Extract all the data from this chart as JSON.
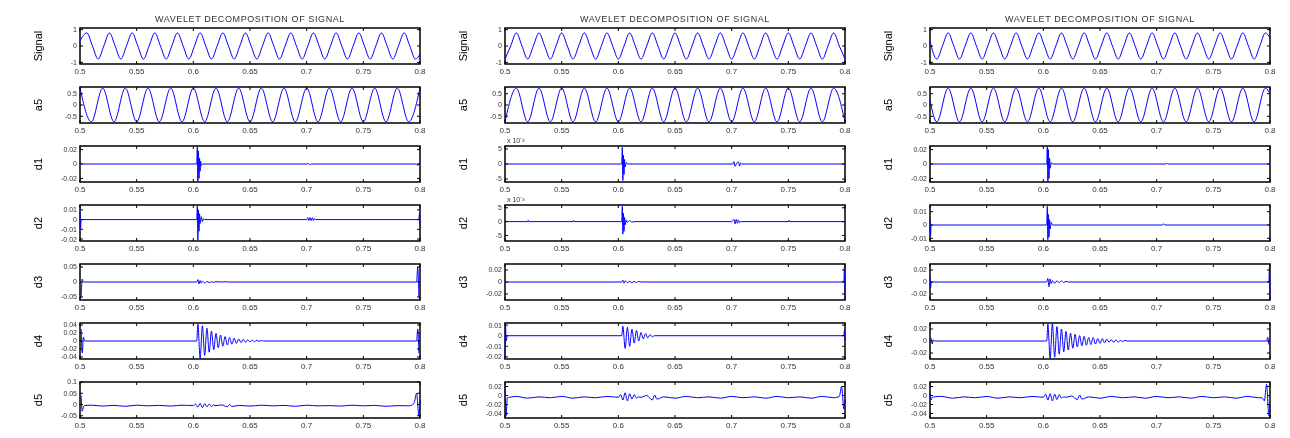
{
  "chart_data": [
    {
      "type": "line",
      "title": "WAVELET DECOMPOSITION OF SIGNAL",
      "ylabel": "Signal",
      "color": "#0000ff",
      "xlim": [
        0.5,
        0.8
      ],
      "ylim": [
        -1.1,
        1.1
      ],
      "xticks": [
        0.5,
        0.55,
        0.6,
        0.65,
        0.7,
        0.75,
        0.8
      ],
      "yticks": [
        -1,
        0,
        1
      ],
      "x": [
        0.5,
        0.506,
        0.511,
        0.516,
        0.521,
        0.526,
        0.531,
        0.536,
        0.541,
        0.546,
        0.551,
        0.556,
        0.561,
        0.566,
        0.571,
        0.576,
        0.581,
        0.586,
        0.591,
        0.596,
        0.601,
        0.606,
        0.611,
        0.616,
        0.621,
        0.626,
        0.631,
        0.636,
        0.641,
        0.646,
        0.651,
        0.656,
        0.661,
        0.666,
        0.671,
        0.676,
        0.681,
        0.686,
        0.691,
        0.696,
        0.701,
        0.706,
        0.711,
        0.716,
        0.721,
        0.726,
        0.731,
        0.736,
        0.741,
        0.746,
        0.751,
        0.756,
        0.761,
        0.766,
        0.771,
        0.776,
        0.781,
        0.786,
        0.791,
        0.796,
        0.8
      ],
      "values": [
        0.3,
        0.8,
        0,
        -0.8,
        0,
        0.8,
        0,
        -0.8,
        0,
        0.8,
        0,
        -0.8,
        0,
        0.8,
        0,
        -0.8,
        0,
        0.8,
        0,
        -0.8,
        0,
        0.8,
        0,
        -0.8,
        0,
        0.8,
        0,
        -0.8,
        0,
        0.8,
        0,
        -0.8,
        0,
        0.8,
        0,
        -0.8,
        0,
        0.8,
        0,
        -0.8,
        0,
        0.8,
        0,
        -0.8,
        0,
        0.8,
        0,
        -0.8,
        0,
        0.8,
        0,
        -0.8,
        0,
        0.8,
        0,
        -0.8,
        0,
        0.8,
        0,
        -0.8,
        -0.5
      ]
    },
    {
      "type": "line",
      "title": "WAVELET DECOMPOSITION OF SIGNAL",
      "ylabel": "Signal",
      "color": "#0000ff",
      "xlim": [
        0.5,
        0.8
      ],
      "ylim": [
        -1.1,
        1.1
      ],
      "xticks": [
        0.5,
        0.55,
        0.6,
        0.65,
        0.7,
        0.75,
        0.8
      ],
      "yticks": [
        -1,
        0,
        1
      ],
      "x": [
        0.5,
        0.505,
        0.51,
        0.515,
        0.52,
        0.525,
        0.53,
        0.535,
        0.54,
        0.545,
        0.55,
        0.555,
        0.56,
        0.565,
        0.57,
        0.575,
        0.58,
        0.585,
        0.59,
        0.595,
        0.6,
        0.605,
        0.61,
        0.615,
        0.62,
        0.625,
        0.63,
        0.635,
        0.64,
        0.645,
        0.65,
        0.655,
        0.66,
        0.665,
        0.67,
        0.675,
        0.68,
        0.685,
        0.69,
        0.695,
        0.7,
        0.705,
        0.71,
        0.715,
        0.72,
        0.725,
        0.73,
        0.735,
        0.74,
        0.745,
        0.75,
        0.755,
        0.76,
        0.765,
        0.77,
        0.775,
        0.78,
        0.785,
        0.79,
        0.795,
        0.8
      ],
      "values": [
        -0.8,
        0,
        0.8,
        0,
        -0.8,
        0,
        0.8,
        0,
        -0.8,
        0,
        0.8,
        0,
        -0.8,
        0,
        0.8,
        0,
        -0.8,
        0,
        0.8,
        0,
        -0.8,
        0,
        0.8,
        0,
        -0.8,
        0,
        0.8,
        0,
        -0.8,
        0,
        0.8,
        0,
        -0.8,
        0,
        0.8,
        0,
        -0.8,
        0,
        0.8,
        0,
        -0.8,
        0,
        0.8,
        0,
        -0.8,
        0,
        0.8,
        0,
        -0.8,
        0,
        0.8,
        0,
        -0.8,
        0,
        0.8,
        0,
        -0.8,
        0,
        0.8,
        0,
        -0.8
      ]
    },
    {
      "type": "line",
      "title": "WAVELET DECOMPOSITION OF SIGNAL",
      "ylabel": "Signal",
      "color": "#0000ff",
      "xlim": [
        0.5,
        0.8
      ],
      "ylim": [
        -1.1,
        1.1
      ],
      "xticks": [
        0.5,
        0.55,
        0.6,
        0.65,
        0.7,
        0.75,
        0.8
      ],
      "yticks": [
        -1,
        0,
        1
      ],
      "x": [
        0.5,
        0.506,
        0.511,
        0.516,
        0.521,
        0.526,
        0.531,
        0.536,
        0.541,
        0.546,
        0.551,
        0.556,
        0.561,
        0.566,
        0.571,
        0.576,
        0.581,
        0.586,
        0.591,
        0.596,
        0.601,
        0.606,
        0.611,
        0.616,
        0.621,
        0.626,
        0.631,
        0.636,
        0.641,
        0.646,
        0.651,
        0.656,
        0.661,
        0.666,
        0.671,
        0.676,
        0.681,
        0.686,
        0.691,
        0.696,
        0.701,
        0.706,
        0.711,
        0.716,
        0.721,
        0.726,
        0.731,
        0.736,
        0.741,
        0.746,
        0.751,
        0.756,
        0.761,
        0.766,
        0.771,
        0.776,
        0.781,
        0.786,
        0.791,
        0.796,
        0.8
      ],
      "values": [
        0.3,
        -0.8,
        0,
        0.8,
        0,
        -0.8,
        0,
        0.8,
        0,
        -0.8,
        0,
        0.8,
        0,
        -0.8,
        0,
        0.8,
        0,
        -0.8,
        0,
        0.8,
        0,
        -0.8,
        0,
        0.8,
        0,
        -0.8,
        0,
        0.8,
        0,
        -0.8,
        0,
        0.8,
        0,
        -0.8,
        0,
        0.8,
        0,
        -0.8,
        0,
        0.8,
        0,
        -0.8,
        0,
        0.8,
        0,
        -0.8,
        0,
        0.8,
        0,
        -0.8,
        0,
        0.8,
        0,
        -0.8,
        0,
        0.8,
        0,
        -0.8,
        0,
        0.8,
        0.5
      ]
    },
    {
      "type": "line",
      "ylabel": "a5",
      "color": "#0000ff",
      "xlim": [
        0.5,
        0.8
      ],
      "ylim": [
        -0.8,
        0.8
      ],
      "xticks": [
        0.5,
        0.55,
        0.6,
        0.65,
        0.7,
        0.75,
        0.8
      ],
      "yticks": [
        -0.5,
        0,
        0.5
      ],
      "x": [
        0.5,
        0.51,
        0.52,
        0.53,
        0.54,
        0.55,
        0.56,
        0.57,
        0.58,
        0.59,
        0.6,
        0.61,
        0.62,
        0.63,
        0.64,
        0.65,
        0.66,
        0.67,
        0.68,
        0.69,
        0.7,
        0.71,
        0.72,
        0.73,
        0.74,
        0.75,
        0.76,
        0.77,
        0.78,
        0.79,
        0.8
      ],
      "values": [
        0.75,
        -0.75,
        0.75,
        -0.75,
        0.75,
        -0.75,
        0.75,
        -0.75,
        0.75,
        -0.75,
        0.75,
        -0.75,
        0.75,
        -0.75,
        0.75,
        -0.75,
        0.75,
        -0.75,
        0.75,
        -0.75,
        0.75,
        -0.75,
        0.75,
        -0.75,
        0.75,
        -0.75,
        0.75,
        -0.75,
        0.75,
        -0.75,
        0.75
      ]
    },
    {
      "type": "line",
      "ylabel": "a5",
      "color": "#0000ff",
      "xlim": [
        0.5,
        0.8
      ],
      "ylim": [
        -0.8,
        0.8
      ],
      "xticks": [
        0.5,
        0.55,
        0.6,
        0.65,
        0.7,
        0.75,
        0.8
      ],
      "yticks": [
        -0.5,
        0,
        0.5
      ],
      "x": [
        0.5,
        0.51,
        0.52,
        0.53,
        0.54,
        0.55,
        0.56,
        0.57,
        0.58,
        0.59,
        0.6,
        0.61,
        0.62,
        0.63,
        0.64,
        0.65,
        0.66,
        0.67,
        0.68,
        0.69,
        0.7,
        0.71,
        0.72,
        0.73,
        0.74,
        0.75,
        0.76,
        0.77,
        0.78,
        0.79,
        0.8
      ],
      "values": [
        -0.75,
        0.75,
        -0.75,
        0.75,
        -0.75,
        0.75,
        -0.75,
        0.75,
        -0.75,
        0.75,
        -0.75,
        0.75,
        -0.75,
        0.75,
        -0.75,
        0.75,
        -0.75,
        0.75,
        -0.75,
        0.75,
        -0.75,
        0.75,
        -0.75,
        0.75,
        -0.75,
        0.75,
        -0.75,
        0.75,
        -0.75,
        0.75,
        -0.75
      ]
    },
    {
      "type": "line",
      "ylabel": "a5",
      "color": "#0000ff",
      "xlim": [
        0.5,
        0.8
      ],
      "ylim": [
        -0.8,
        0.8
      ],
      "xticks": [
        0.5,
        0.55,
        0.6,
        0.65,
        0.7,
        0.75,
        0.8
      ],
      "yticks": [
        -0.5,
        0,
        0.5
      ],
      "x": [
        0.5,
        0.506,
        0.516,
        0.526,
        0.536,
        0.546,
        0.556,
        0.566,
        0.576,
        0.586,
        0.596,
        0.606,
        0.616,
        0.626,
        0.636,
        0.646,
        0.656,
        0.666,
        0.676,
        0.686,
        0.696,
        0.706,
        0.716,
        0.726,
        0.736,
        0.746,
        0.756,
        0.766,
        0.776,
        0.786,
        0.796,
        0.8
      ],
      "values": [
        0.2,
        -0.75,
        0.75,
        -0.75,
        0.75,
        -0.75,
        0.75,
        -0.75,
        0.75,
        -0.75,
        0.75,
        -0.75,
        0.75,
        -0.75,
        0.75,
        -0.75,
        0.75,
        -0.75,
        0.75,
        -0.75,
        0.75,
        -0.75,
        0.75,
        -0.75,
        0.75,
        -0.75,
        0.75,
        -0.75,
        0.75,
        -0.75,
        0.75,
        0.5
      ]
    },
    {
      "type": "line",
      "ylabel": "d1",
      "color": "#0000ff",
      "xlim": [
        0.5,
        0.8
      ],
      "ylim": [
        -0.025,
        0.025
      ],
      "xticks": [
        0.5,
        0.55,
        0.6,
        0.65,
        0.7,
        0.75,
        0.8
      ],
      "yticks": [
        -0.02,
        0,
        0.02
      ],
      "x": [
        0.501,
        0.502,
        0.603,
        0.6035,
        0.604,
        0.6045,
        0.605,
        0.6055,
        0.606,
        0.6065,
        0.607,
        0.608,
        0.7,
        0.7015,
        0.7025,
        0.704,
        0.797,
        0.798,
        0.799
      ],
      "values": [
        0.002,
        0,
        0,
        0.024,
        -0.024,
        0.018,
        -0.02,
        0.008,
        -0.01,
        0.004,
        -0.002,
        0,
        0,
        0.001,
        -0.001,
        0,
        0,
        -0.002,
        0.001
      ]
    },
    {
      "type": "line",
      "ylabel": "d1",
      "annotations": [
        "x 10⁻³"
      ],
      "color": "#0000ff",
      "xlim": [
        0.5,
        0.8
      ],
      "ylim": [
        -6,
        6
      ],
      "xticks": [
        0.5,
        0.55,
        0.6,
        0.65,
        0.7,
        0.75,
        0.8
      ],
      "yticks": [
        -5,
        0,
        5
      ],
      "x": [
        0.5,
        0.603,
        0.6035,
        0.604,
        0.6045,
        0.605,
        0.6055,
        0.606,
        0.607,
        0.608,
        0.701,
        0.702,
        0.703,
        0.704,
        0.706,
        0.707,
        0.708,
        0.709,
        0.8
      ],
      "values": [
        0,
        0,
        5.5,
        -5.5,
        3,
        -3.5,
        1.5,
        -1,
        0.5,
        0,
        0,
        0.8,
        -0.8,
        0,
        0.7,
        -0.7,
        0.3,
        0,
        0
      ]
    },
    {
      "type": "line",
      "ylabel": "d1",
      "color": "#0000ff",
      "xlim": [
        0.5,
        0.8
      ],
      "ylim": [
        -0.025,
        0.025
      ],
      "xticks": [
        0.5,
        0.55,
        0.6,
        0.65,
        0.7,
        0.75,
        0.8
      ],
      "yticks": [
        -0.02,
        0,
        0.02
      ],
      "x": [
        0.5,
        0.603,
        0.6035,
        0.604,
        0.6045,
        0.605,
        0.6055,
        0.606,
        0.607,
        0.608,
        0.708,
        0.709,
        0.71,
        0.8
      ],
      "values": [
        0,
        0,
        0.024,
        -0.024,
        0.02,
        -0.02,
        0.008,
        -0.006,
        0.002,
        0,
        0,
        0.001,
        0,
        0
      ]
    },
    {
      "type": "line",
      "ylabel": "d2",
      "color": "#0000ff",
      "xlim": [
        0.5,
        0.8
      ],
      "ylim": [
        -0.022,
        0.015
      ],
      "xticks": [
        0.5,
        0.55,
        0.6,
        0.65,
        0.7,
        0.75,
        0.8
      ],
      "yticks": [
        -0.02,
        -0.01,
        0,
        0.01
      ],
      "x": [
        0.5,
        0.5005,
        0.501,
        0.603,
        0.6035,
        0.604,
        0.6045,
        0.605,
        0.6055,
        0.606,
        0.607,
        0.608,
        0.609,
        0.61,
        0.7,
        0.701,
        0.702,
        0.703,
        0.704,
        0.705,
        0.706,
        0.707,
        0.708,
        0.799,
        0.7995,
        0.8
      ],
      "values": [
        0.008,
        -0.01,
        0,
        0,
        0.014,
        -0.021,
        0.01,
        -0.012,
        0.006,
        -0.004,
        0.003,
        -0.002,
        0.001,
        0,
        0,
        0.002,
        -0.001,
        0.002,
        -0.001,
        0.002,
        -0.001,
        0.001,
        0,
        0,
        0.006,
        -0.006
      ]
    },
    {
      "type": "line",
      "ylabel": "d2",
      "annotations": [
        "x 10⁻³"
      ],
      "color": "#0000ff",
      "xlim": [
        0.5,
        0.8
      ],
      "ylim": [
        -7,
        6
      ],
      "xticks": [
        0.5,
        0.55,
        0.6,
        0.65,
        0.7,
        0.75,
        0.8
      ],
      "yticks": [
        -5,
        0,
        5
      ],
      "x": [
        0.5,
        0.52,
        0.5205,
        0.521,
        0.56,
        0.5605,
        0.561,
        0.603,
        0.6035,
        0.604,
        0.6045,
        0.605,
        0.6055,
        0.606,
        0.607,
        0.608,
        0.61,
        0.612,
        0.614,
        0.7,
        0.702,
        0.703,
        0.704,
        0.705,
        0.706,
        0.707,
        0.708,
        0.75,
        0.7505,
        0.751,
        0.8
      ],
      "values": [
        0,
        0,
        0.5,
        0,
        0,
        0.5,
        0,
        0,
        5.5,
        -4.5,
        3,
        -3.5,
        1.5,
        -1.2,
        0.6,
        -0.3,
        0.4,
        -0.2,
        0,
        0,
        0.8,
        -0.8,
        0.8,
        -0.6,
        0.6,
        -0.4,
        0,
        0,
        0.5,
        0,
        0
      ]
    },
    {
      "type": "line",
      "ylabel": "d2",
      "color": "#0000ff",
      "xlim": [
        0.5,
        0.8
      ],
      "ylim": [
        -0.012,
        0.015
      ],
      "xticks": [
        0.5,
        0.55,
        0.6,
        0.65,
        0.7,
        0.75,
        0.8
      ],
      "yticks": [
        -0.01,
        0,
        0.01
      ],
      "x": [
        0.5,
        0.5005,
        0.501,
        0.603,
        0.6035,
        0.604,
        0.6045,
        0.605,
        0.6055,
        0.606,
        0.607,
        0.608,
        0.705,
        0.706,
        0.707,
        0.8
      ],
      "values": [
        0.005,
        -0.008,
        0,
        0,
        0.014,
        -0.011,
        0.008,
        -0.009,
        0.004,
        -0.003,
        0.002,
        0,
        0,
        0.001,
        0,
        0
      ]
    },
    {
      "type": "line",
      "ylabel": "d3",
      "color": "#0000ff",
      "xlim": [
        0.5,
        0.8
      ],
      "ylim": [
        -0.06,
        0.06
      ],
      "xticks": [
        0.5,
        0.55,
        0.6,
        0.65,
        0.7,
        0.75,
        0.8
      ],
      "yticks": [
        -0.05,
        0,
        0.05
      ],
      "x": [
        0.501,
        0.502,
        0.503,
        0.603,
        0.604,
        0.605,
        0.606,
        0.607,
        0.608,
        0.61,
        0.612,
        0.614,
        0.616,
        0.618,
        0.62,
        0.625,
        0.628,
        0.63,
        0.797,
        0.798,
        0.799
      ],
      "values": [
        -0.05,
        0.01,
        0,
        0,
        0.008,
        -0.006,
        0.005,
        -0.004,
        0.003,
        -0.003,
        0.002,
        -0.002,
        0.001,
        -0.001,
        0.001,
        0,
        0.001,
        0,
        0,
        0.05,
        -0.05
      ]
    },
    {
      "type": "line",
      "ylabel": "d3",
      "color": "#0000ff",
      "xlim": [
        0.5,
        0.8
      ],
      "ylim": [
        -0.03,
        0.03
      ],
      "xticks": [
        0.5,
        0.55,
        0.6,
        0.65,
        0.7,
        0.75,
        0.8
      ],
      "yticks": [
        -0.02,
        0,
        0.02
      ],
      "x": [
        0.5,
        0.603,
        0.604,
        0.605,
        0.606,
        0.608,
        0.61,
        0.612,
        0.614,
        0.616,
        0.618,
        0.62,
        0.799,
        0.7995,
        0.8
      ],
      "values": [
        0,
        0,
        0.003,
        -0.002,
        0.002,
        -0.001,
        0.001,
        -0.001,
        0.001,
        -0.001,
        0.001,
        0,
        0,
        0.025,
        -0.025
      ]
    },
    {
      "type": "line",
      "ylabel": "d3",
      "color": "#0000ff",
      "xlim": [
        0.5,
        0.8
      ],
      "ylim": [
        -0.03,
        0.03
      ],
      "xticks": [
        0.5,
        0.55,
        0.6,
        0.65,
        0.7,
        0.75,
        0.8
      ],
      "yticks": [
        -0.02,
        0,
        0.02
      ],
      "x": [
        0.5,
        0.5005,
        0.501,
        0.603,
        0.604,
        0.605,
        0.606,
        0.607,
        0.608,
        0.61,
        0.612,
        0.614,
        0.616,
        0.618,
        0.62,
        0.622,
        0.799,
        0.7995,
        0.8
      ],
      "values": [
        0.008,
        -0.01,
        0,
        0,
        0.006,
        -0.008,
        0.005,
        -0.003,
        0.002,
        -0.002,
        0.002,
        -0.001,
        0.002,
        -0.001,
        0.001,
        0,
        0,
        0.025,
        -0.025
      ]
    },
    {
      "type": "line",
      "ylabel": "d4",
      "color": "#0000ff",
      "xlim": [
        0.5,
        0.8
      ],
      "ylim": [
        -0.045,
        0.045
      ],
      "xticks": [
        0.5,
        0.55,
        0.6,
        0.65,
        0.7,
        0.75,
        0.8
      ],
      "yticks": [
        -0.04,
        -0.02,
        0,
        0.02,
        0.04
      ],
      "x": [
        0.501,
        0.502,
        0.503,
        0.504,
        0.603,
        0.604,
        0.606,
        0.608,
        0.61,
        0.612,
        0.614,
        0.616,
        0.618,
        0.62,
        0.622,
        0.624,
        0.626,
        0.628,
        0.63,
        0.632,
        0.634,
        0.636,
        0.638,
        0.64,
        0.642,
        0.644,
        0.646,
        0.648,
        0.65,
        0.652,
        0.654,
        0.656,
        0.658,
        0.66,
        0.662,
        0.797,
        0.798,
        0.799
      ],
      "values": [
        0.03,
        -0.03,
        0.01,
        0,
        0,
        0.042,
        -0.044,
        0.038,
        -0.036,
        0.032,
        -0.028,
        0.025,
        -0.022,
        0.019,
        -0.017,
        0.015,
        -0.013,
        0.011,
        -0.01,
        0.009,
        -0.008,
        0.007,
        -0.006,
        0.005,
        -0.004,
        0.004,
        -0.003,
        0.003,
        -0.002,
        0.002,
        -0.002,
        0.002,
        -0.001,
        0.001,
        0,
        0,
        0.03,
        -0.03
      ]
    },
    {
      "type": "line",
      "ylabel": "d4",
      "color": "#0000ff",
      "xlim": [
        0.5,
        0.8
      ],
      "ylim": [
        -0.022,
        0.012
      ],
      "xticks": [
        0.5,
        0.55,
        0.6,
        0.65,
        0.7,
        0.75,
        0.8
      ],
      "yticks": [
        -0.02,
        -0.01,
        0,
        0.01
      ],
      "x": [
        0.5,
        0.5005,
        0.501,
        0.502,
        0.603,
        0.604,
        0.606,
        0.608,
        0.61,
        0.612,
        0.614,
        0.616,
        0.618,
        0.62,
        0.622,
        0.624,
        0.626,
        0.628,
        0.63,
        0.632,
        0.799,
        0.7995,
        0.8
      ],
      "values": [
        -0.02,
        0.01,
        -0.005,
        0,
        0,
        0.009,
        -0.012,
        0.008,
        -0.01,
        0.006,
        -0.007,
        0.005,
        -0.005,
        0.003,
        -0.003,
        0.002,
        -0.002,
        0.001,
        -0.001,
        0,
        0,
        0.005,
        -0.005
      ]
    },
    {
      "type": "line",
      "ylabel": "d4",
      "color": "#0000ff",
      "xlim": [
        0.5,
        0.8
      ],
      "ylim": [
        -0.03,
        0.03
      ],
      "xticks": [
        0.5,
        0.55,
        0.6,
        0.65,
        0.7,
        0.75,
        0.8
      ],
      "yticks": [
        -0.02,
        0,
        0.02
      ],
      "x": [
        0.501,
        0.502,
        0.503,
        0.504,
        0.603,
        0.604,
        0.606,
        0.608,
        0.61,
        0.612,
        0.614,
        0.616,
        0.618,
        0.62,
        0.622,
        0.624,
        0.626,
        0.628,
        0.63,
        0.632,
        0.634,
        0.636,
        0.638,
        0.64,
        0.642,
        0.644,
        0.646,
        0.648,
        0.65,
        0.652,
        0.654,
        0.656,
        0.658,
        0.66,
        0.662,
        0.664,
        0.666,
        0.668,
        0.67,
        0.672,
        0.674,
        0.797,
        0.798,
        0.799
      ],
      "values": [
        0.005,
        -0.005,
        0.002,
        0,
        0,
        0.028,
        -0.029,
        0.029,
        -0.027,
        0.024,
        -0.022,
        0.02,
        -0.018,
        0.016,
        -0.015,
        0.013,
        -0.012,
        0.011,
        -0.01,
        0.009,
        -0.008,
        0.008,
        -0.007,
        0.006,
        -0.006,
        0.006,
        -0.005,
        0.004,
        -0.004,
        0.004,
        -0.003,
        0.003,
        -0.002,
        0.002,
        -0.002,
        0.002,
        -0.002,
        0.001,
        -0.001,
        0.001,
        0,
        0,
        0.006,
        -0.006
      ]
    },
    {
      "type": "line",
      "ylabel": "d5",
      "color": "#0000ff",
      "xlim": [
        0.5,
        0.8
      ],
      "ylim": [
        -0.06,
        0.1
      ],
      "xticks": [
        0.5,
        0.55,
        0.6,
        0.65,
        0.7,
        0.75,
        0.8
      ],
      "yticks": [
        -0.05,
        0,
        0.05,
        0.1
      ],
      "x": [
        0.501,
        0.502,
        0.503,
        0.504,
        0.51,
        0.52,
        0.53,
        0.54,
        0.55,
        0.56,
        0.57,
        0.58,
        0.59,
        0.6,
        0.602,
        0.604,
        0.606,
        0.608,
        0.61,
        0.612,
        0.614,
        0.616,
        0.618,
        0.62,
        0.625,
        0.63,
        0.632,
        0.634,
        0.64,
        0.65,
        0.66,
        0.67,
        0.68,
        0.69,
        0.7,
        0.71,
        0.72,
        0.73,
        0.74,
        0.75,
        0.76,
        0.77,
        0.78,
        0.79,
        0.793,
        0.795,
        0.797,
        0.799,
        0.8
      ],
      "values": [
        0.04,
        -0.03,
        -0.01,
        -0.005,
        -0.003,
        -0.007,
        -0.004,
        -0.008,
        -0.003,
        -0.006,
        -0.004,
        -0.007,
        -0.003,
        -0.005,
        0.002,
        -0.012,
        0.005,
        -0.014,
        0.004,
        -0.01,
        0.002,
        -0.009,
        -0.002,
        -0.005,
        -0.002,
        -0.01,
        0,
        -0.009,
        -0.004,
        -0.007,
        -0.003,
        -0.006,
        -0.004,
        -0.008,
        -0.003,
        -0.006,
        -0.005,
        -0.007,
        -0.003,
        -0.006,
        -0.004,
        -0.008,
        -0.005,
        -0.006,
        -0.002,
        0.01,
        0.05,
        -0.05,
        0.02
      ]
    },
    {
      "type": "line",
      "ylabel": "d5",
      "color": "#0000ff",
      "xlim": [
        0.5,
        0.8
      ],
      "ylim": [
        -0.05,
        0.03
      ],
      "xticks": [
        0.5,
        0.55,
        0.6,
        0.65,
        0.7,
        0.75,
        0.8
      ],
      "yticks": [
        -0.04,
        -0.02,
        0,
        0.02
      ],
      "x": [
        0.5,
        0.501,
        0.502,
        0.504,
        0.51,
        0.52,
        0.53,
        0.54,
        0.55,
        0.56,
        0.57,
        0.58,
        0.59,
        0.6,
        0.602,
        0.604,
        0.606,
        0.608,
        0.61,
        0.612,
        0.614,
        0.616,
        0.618,
        0.62,
        0.625,
        0.63,
        0.632,
        0.634,
        0.64,
        0.65,
        0.66,
        0.67,
        0.68,
        0.69,
        0.7,
        0.71,
        0.72,
        0.73,
        0.74,
        0.75,
        0.76,
        0.77,
        0.78,
        0.79,
        0.793,
        0.795,
        0.797,
        0.799,
        0.8
      ],
      "values": [
        0.02,
        -0.045,
        -0.005,
        -0.004,
        -0.002,
        -0.006,
        -0.003,
        -0.005,
        -0.002,
        -0.006,
        -0.003,
        -0.005,
        -0.002,
        -0.004,
        0.002,
        -0.01,
        0.006,
        -0.012,
        0.004,
        -0.008,
        0.002,
        -0.006,
        -0.003,
        -0.004,
        0,
        -0.01,
        0.001,
        -0.008,
        -0.003,
        -0.006,
        -0.002,
        -0.005,
        -0.003,
        -0.006,
        -0.002,
        -0.005,
        -0.003,
        -0.006,
        -0.002,
        -0.005,
        -0.003,
        -0.006,
        -0.002,
        -0.005,
        -0.004,
        -0.002,
        0.02,
        -0.03,
        -0.01
      ]
    },
    {
      "type": "line",
      "ylabel": "d5",
      "color": "#0000ff",
      "xlim": [
        0.5,
        0.8
      ],
      "ylim": [
        -0.05,
        0.03
      ],
      "xticks": [
        0.5,
        0.55,
        0.6,
        0.65,
        0.7,
        0.75,
        0.8
      ],
      "yticks": [
        -0.04,
        -0.02,
        0,
        0.02
      ],
      "x": [
        0.5,
        0.501,
        0.502,
        0.504,
        0.51,
        0.52,
        0.53,
        0.54,
        0.55,
        0.56,
        0.57,
        0.58,
        0.59,
        0.6,
        0.602,
        0.604,
        0.606,
        0.608,
        0.61,
        0.612,
        0.614,
        0.616,
        0.618,
        0.62,
        0.625,
        0.63,
        0.632,
        0.634,
        0.64,
        0.65,
        0.66,
        0.67,
        0.68,
        0.69,
        0.7,
        0.71,
        0.72,
        0.73,
        0.74,
        0.75,
        0.76,
        0.77,
        0.78,
        0.79,
        0.793,
        0.795,
        0.797,
        0.799,
        0.8
      ],
      "values": [
        0.005,
        -0.01,
        -0.004,
        -0.003,
        -0.002,
        -0.006,
        -0.003,
        -0.005,
        -0.002,
        -0.006,
        -0.003,
        -0.005,
        -0.002,
        -0.004,
        0.003,
        -0.01,
        0.004,
        -0.012,
        0.003,
        -0.009,
        0.002,
        -0.006,
        -0.003,
        -0.004,
        -0.001,
        -0.009,
        0.001,
        -0.008,
        -0.003,
        -0.006,
        -0.002,
        -0.005,
        -0.003,
        -0.006,
        -0.002,
        -0.005,
        -0.003,
        -0.006,
        -0.002,
        -0.005,
        -0.003,
        -0.006,
        -0.002,
        -0.005,
        -0.005,
        -0.012,
        0.025,
        -0.045,
        -0.02
      ]
    }
  ]
}
